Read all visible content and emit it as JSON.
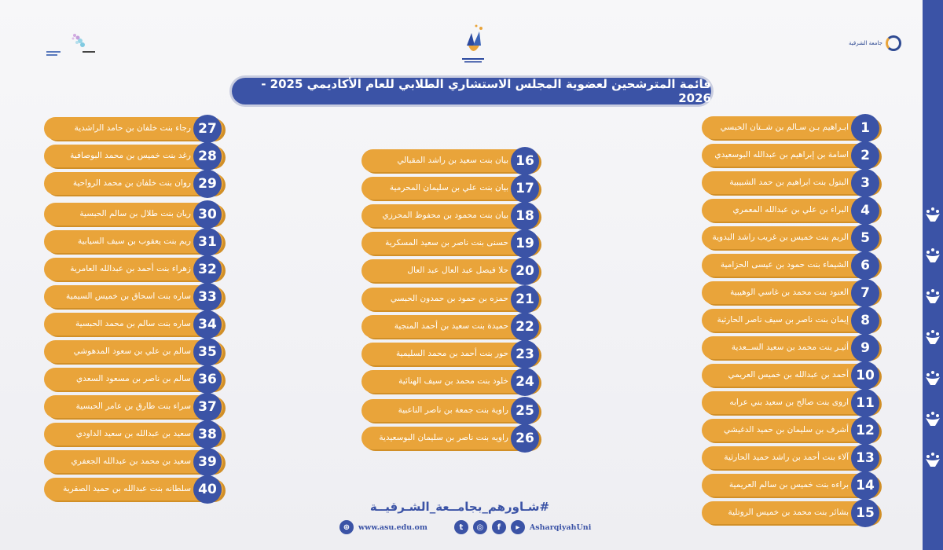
{
  "title": "قائمة المترشحين لعضوية المجلس الاستشاري الطلابي للعام الأكاديمي 2025 - 2026",
  "logos": {
    "right_logo_text": "جامعة الشرقية"
  },
  "colors": {
    "primary_blue": "#3b53a6",
    "pill_orange": "#e9a43a",
    "pill_shadow": "#d18f27",
    "background": "#f3f3f6"
  },
  "candidates": [
    {
      "n": "1",
      "name": "ابـراهيم بـن سـالم بن شــتان الحبسي"
    },
    {
      "n": "2",
      "name": "اسامة بن إبراهيم بن عبدالله البوسعيدي"
    },
    {
      "n": "3",
      "name": "البتول بنت ابراهيم بن حمد الشبيبية"
    },
    {
      "n": "4",
      "name": "البراء بن علي بن  عبدالله المعمري"
    },
    {
      "n": "5",
      "name": "الريم بنت خميس بن غريب راشد البدوية"
    },
    {
      "n": "6",
      "name": "الشيماء بنت حمود بن عيسى الحزامية"
    },
    {
      "n": "7",
      "name": "العنود بنت محمد بن غاسي الوهيبية"
    },
    {
      "n": "8",
      "name": "إيمان بنت ناصر بن سيف ناصر الحارثية"
    },
    {
      "n": "9",
      "name": "أثيـر بنت محمد بن سعيد الســعدية"
    },
    {
      "n": "10",
      "name": "أحمد بن عبدالله بن خميس العريمي"
    },
    {
      "n": "11",
      "name": "اروى بنت صالح بن سعيد بني عرابه"
    },
    {
      "n": "12",
      "name": "أشرف بن سليمان بن حميد الدغيشي"
    },
    {
      "n": "13",
      "name": "آلاء بنت أحمد بن راشد حميد الحارثية"
    },
    {
      "n": "14",
      "name": "براءه بنت خميس بن سالم العريمية"
    },
    {
      "n": "15",
      "name": "بشائر بنت محمد بن خميس الروتلية"
    },
    {
      "n": "16",
      "name": "بيان بنت سعيد بن راشد المقبالي"
    },
    {
      "n": "17",
      "name": "بيان بنت علي بن  سليمان المحرمية"
    },
    {
      "n": "18",
      "name": "بيان بنت محمود بن محفوظ  المحرزي"
    },
    {
      "n": "19",
      "name": "حسنى بنت ناصر بن سعيد المسكرية"
    },
    {
      "n": "20",
      "name": "حلا فيصل عبد العال عبد العال"
    },
    {
      "n": "21",
      "name": "حمزه بن حمود بن حمدون الحبسي"
    },
    {
      "n": "22",
      "name": "حميدة بنت سعيد بن أحمد المنجية"
    },
    {
      "n": "23",
      "name": "حور بنت أحمد بن محمد السليمية"
    },
    {
      "n": "24",
      "name": "خلود بنت محمد بن سيف الهنائية"
    },
    {
      "n": "25",
      "name": "راوية بنت جمعة بن ناصر الناعبية"
    },
    {
      "n": "26",
      "name": "راويه بنت ناصر بن سليمان البوسعيدية"
    },
    {
      "n": "27",
      "name": "رجاء بنت خلفان بن حامد الراشدية"
    },
    {
      "n": "28",
      "name": "رغد بنت خميس بن محمد البوصافية"
    },
    {
      "n": "29",
      "name": "روان بنت خلفان بن محمد الرواحية"
    },
    {
      "n": "30",
      "name": "ريان بنت طلال بن سالم الحبسية"
    },
    {
      "n": "31",
      "name": "ريم بنت يعقوب بن سيف السيابية"
    },
    {
      "n": "32",
      "name": "زهراء بنت أحمد بن عبدالله العامرية"
    },
    {
      "n": "33",
      "name": "ساره بنت اسحاق بن خميس السيمية"
    },
    {
      "n": "34",
      "name": "ساره بنت سالم بن محمد الحبسية"
    },
    {
      "n": "35",
      "name": "سالم بن علي بن سعود المدهوشي"
    },
    {
      "n": "36",
      "name": "سالم بن ناصر بن مسعود السعدي"
    },
    {
      "n": "37",
      "name": "سراء بنت طارق بن عامر الحبسية"
    },
    {
      "n": "38",
      "name": "سعيد بن عبدالله بن سعيد الداودي"
    },
    {
      "n": "39",
      "name": "سعيد بن محمد بن عبدالله الجعفري"
    },
    {
      "n": "40",
      "name": "سلطانه بنت عبدالله بن حميد الصقرية"
    }
  ],
  "footer": {
    "hashtag": "#شـاورهم_بجامــعة_الشـرقيــة",
    "website": "www.asu.edu.om",
    "social_handle": "AsharqiyahUni",
    "icons": [
      "globe-icon",
      "twitter-icon",
      "instagram-icon",
      "facebook-icon",
      "youtube-icon"
    ]
  }
}
